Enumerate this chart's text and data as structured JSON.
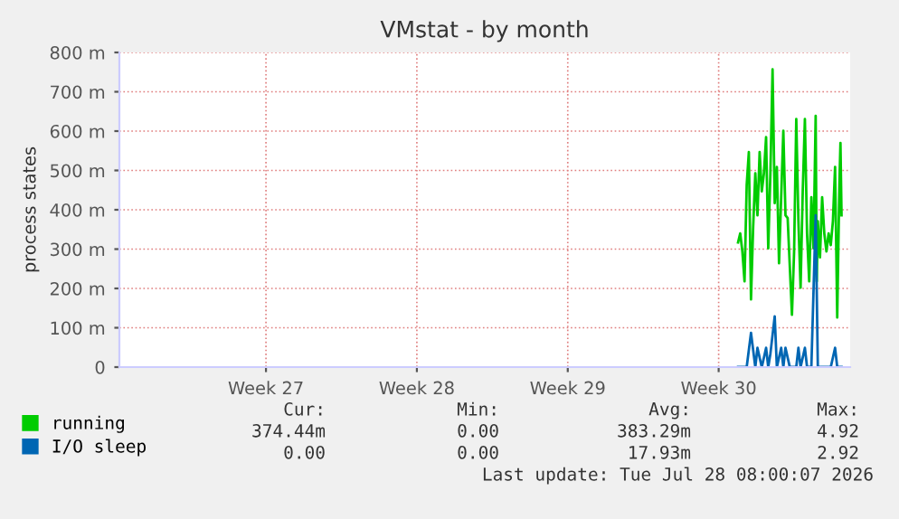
{
  "chart_data": {
    "type": "line",
    "title": "VMstat - by month",
    "ylabel": "process states",
    "xlim": [
      "2026-06-22T04:48",
      "2026-07-26T02:24"
    ],
    "ylim": [
      0,
      800
    ],
    "xticks": [
      {
        "value": "2026-06-29",
        "label": "Week 27"
      },
      {
        "value": "2026-07-06",
        "label": "Week 28"
      },
      {
        "value": "2026-07-13",
        "label": "Week 29"
      },
      {
        "value": "2026-07-20",
        "label": "Week 30"
      }
    ],
    "yticks": [
      0,
      {
        "value": 100,
        "label": "100 m"
      },
      {
        "value": 200,
        "label": "200 m"
      },
      {
        "value": 300,
        "label": "300 m"
      },
      {
        "value": 400,
        "label": "400 m"
      },
      {
        "value": 500,
        "label": "500 m"
      },
      {
        "value": 600,
        "label": "600 m"
      },
      {
        "value": 700,
        "label": "700 m"
      },
      {
        "value": 800,
        "label": "800 m"
      }
    ],
    "grid": true,
    "legend": "bottom",
    "marker": "none",
    "line_style": "solid",
    "series": [
      {
        "name": "running",
        "color": "#00cc00",
        "x": [
          "2026-07-20T21:36",
          "2026-07-21T00:00",
          "2026-07-21T02:24",
          "2026-07-21T04:48",
          "2026-07-21T07:12",
          "2026-07-21T09:36",
          "2026-07-21T12:00",
          "2026-07-21T14:24",
          "2026-07-21T16:48",
          "2026-07-21T19:12",
          "2026-07-21T21:36",
          "2026-07-22T00:00",
          "2026-07-22T02:24",
          "2026-07-22T04:48",
          "2026-07-22T07:12",
          "2026-07-22T09:36",
          "2026-07-22T12:00",
          "2026-07-22T14:24",
          "2026-07-22T16:48",
          "2026-07-22T19:12",
          "2026-07-23T00:00",
          "2026-07-23T02:24",
          "2026-07-23T04:48",
          "2026-07-23T07:12",
          "2026-07-23T09:36",
          "2026-07-23T12:00",
          "2026-07-23T14:24",
          "2026-07-23T16:48",
          "2026-07-23T19:12",
          "2026-07-23T21:36",
          "2026-07-24T00:00",
          "2026-07-24T02:24",
          "2026-07-24T04:48",
          "2026-07-24T07:12",
          "2026-07-24T09:36",
          "2026-07-24T12:00",
          "2026-07-24T13:12",
          "2026-07-24T14:24",
          "2026-07-24T16:48",
          "2026-07-24T19:12",
          "2026-07-24T21:36",
          "2026-07-25T00:00",
          "2026-07-25T02:24",
          "2026-07-25T04:48",
          "2026-07-25T07:12",
          "2026-07-25T09:36",
          "2026-07-25T12:00",
          "2026-07-25T14:24",
          "2026-07-25T15:36",
          "2026-07-25T16:48"
        ],
        "values": [
          317,
          340,
          294,
          218,
          463,
          547,
          172,
          356,
          493,
          386,
          547,
          447,
          493,
          585,
          302,
          493,
          757,
          417,
          509,
          264,
          601,
          386,
          379,
          256,
          133,
          294,
          631,
          371,
          202,
          447,
          631,
          340,
          218,
          432,
          302,
          639,
          218,
          371,
          279,
          432,
          340,
          294,
          340,
          310,
          371,
          509,
          126,
          463,
          570,
          386
        ]
      },
      {
        "name": "I/O sleep",
        "color": "#0066b3",
        "x": [
          "2026-07-20T21:36",
          "2026-07-21T07:12",
          "2026-07-21T12:00",
          "2026-07-21T16:48",
          "2026-07-21T19:12",
          "2026-07-22T00:00",
          "2026-07-22T04:48",
          "2026-07-22T07:12",
          "2026-07-22T09:36",
          "2026-07-22T14:24",
          "2026-07-22T16:48",
          "2026-07-22T21:36",
          "2026-07-23T00:00",
          "2026-07-23T02:24",
          "2026-07-23T07:12",
          "2026-07-23T14:24",
          "2026-07-23T16:48",
          "2026-07-23T19:12",
          "2026-07-24T00:00",
          "2026-07-24T02:24",
          "2026-07-24T07:12",
          "2026-07-24T12:00",
          "2026-07-24T14:24",
          "2026-07-25T04:48",
          "2026-07-25T09:36",
          "2026-07-25T12:00",
          "2026-07-25T16:48"
        ],
        "values": [
          0,
          0,
          87,
          0,
          49,
          0,
          49,
          0,
          34,
          129,
          0,
          49,
          0,
          49,
          0,
          0,
          49,
          0,
          49,
          0,
          0,
          386,
          0,
          0,
          49,
          0,
          0
        ]
      }
    ],
    "annotations": [
      "Cur:",
      "Min:",
      "Avg:",
      "Max:",
      "374.44m",
      "0.00",
      "383.29m",
      "4.92",
      "0.00",
      "0.00",
      "17.93m",
      "2.92",
      "Last update: Tue Jul 28 08:00:07 2026"
    ]
  }
}
